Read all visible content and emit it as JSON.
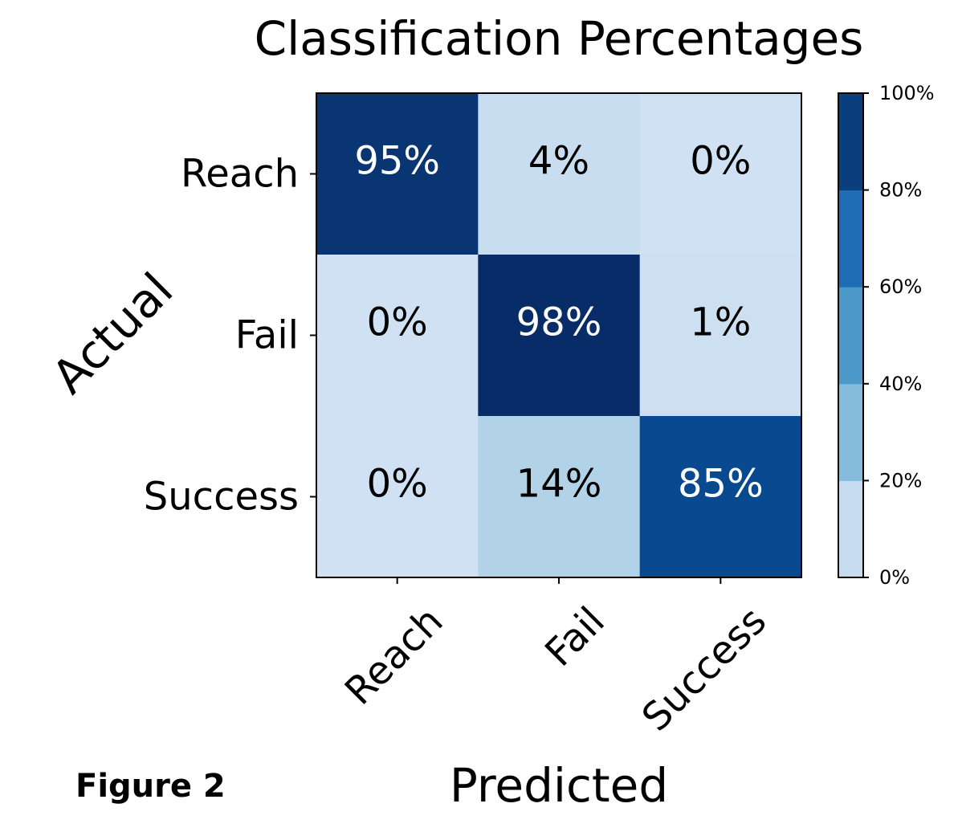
{
  "figure_label": "Figure 2",
  "chart_data": {
    "type": "heatmap",
    "title": "Classification Percentages",
    "xlabel": "Predicted",
    "ylabel": "Actual",
    "x_categories": [
      "Reach",
      "Fail",
      "Success"
    ],
    "y_categories": [
      "Reach",
      "Fail",
      "Success"
    ],
    "values": [
      [
        95,
        4,
        0
      ],
      [
        0,
        98,
        1
      ],
      [
        0,
        14,
        85
      ]
    ],
    "cell_labels": [
      [
        "95%",
        "4%",
        "0%"
      ],
      [
        "0%",
        "98%",
        "1%"
      ],
      [
        "0%",
        "14%",
        "85%"
      ]
    ],
    "value_range": [
      0,
      100
    ],
    "colorbar": {
      "ticks": [
        0,
        20,
        40,
        60,
        80,
        100
      ],
      "tick_labels": [
        "0%",
        "20%",
        "40%",
        "60%",
        "80%",
        "100%"
      ],
      "bins": [
        {
          "from": 0,
          "to": 20,
          "color": "#c6dbef"
        },
        {
          "from": 20,
          "to": 40,
          "color": "#85bcdb"
        },
        {
          "from": 40,
          "to": 60,
          "color": "#4b98c9"
        },
        {
          "from": 60,
          "to": 80,
          "color": "#1f6eb3"
        },
        {
          "from": 80,
          "to": 100,
          "color": "#0a3f7f"
        }
      ]
    },
    "cell_colors": [
      [
        "#093572",
        "#c8ddf0",
        "#cfe1f2"
      ],
      [
        "#cfe1f2",
        "#082c68",
        "#cde0f1"
      ],
      [
        "#cfe1f2",
        "#b1d2e7",
        "#084990"
      ]
    ],
    "label_colors": {
      "light": "#ffffff",
      "dark": "#000000"
    },
    "grid": false,
    "legend": "colorbar-right"
  }
}
